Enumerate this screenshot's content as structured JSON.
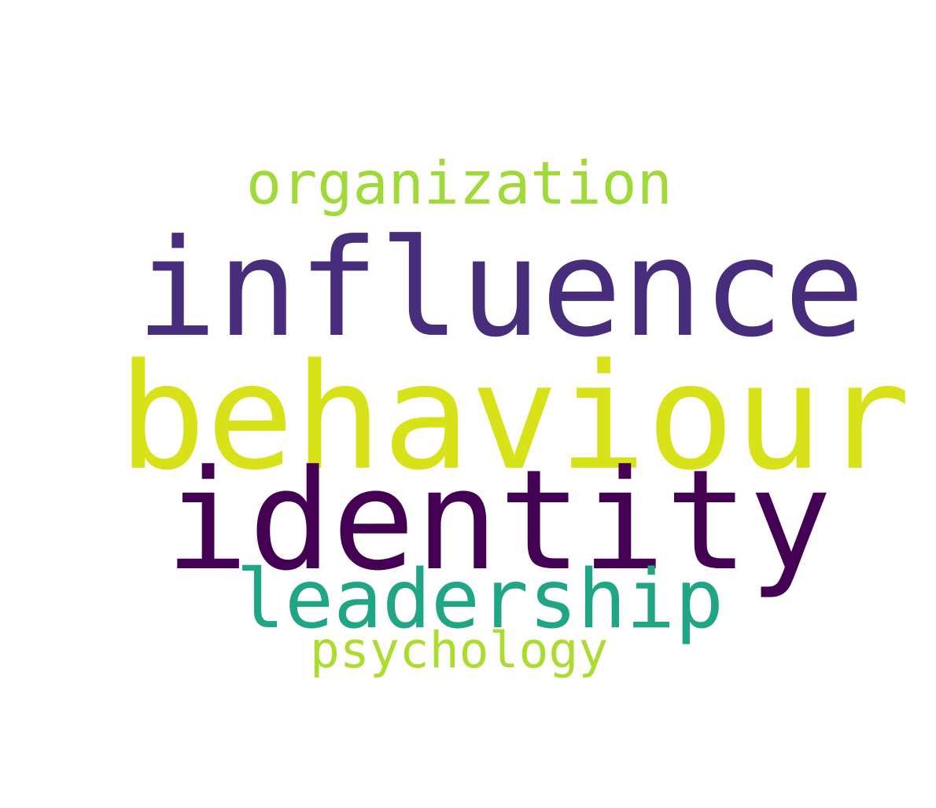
{
  "words": [
    {
      "text": "organization",
      "color": "#a0da39"
    },
    {
      "text": "influence",
      "color": "#472d7b"
    },
    {
      "text": "behaviour",
      "color": "#d8e219"
    },
    {
      "text": "identity",
      "color": "#440154"
    },
    {
      "text": "leadership",
      "color": "#21a685"
    },
    {
      "text": "psychology",
      "color": "#addc30"
    }
  ]
}
